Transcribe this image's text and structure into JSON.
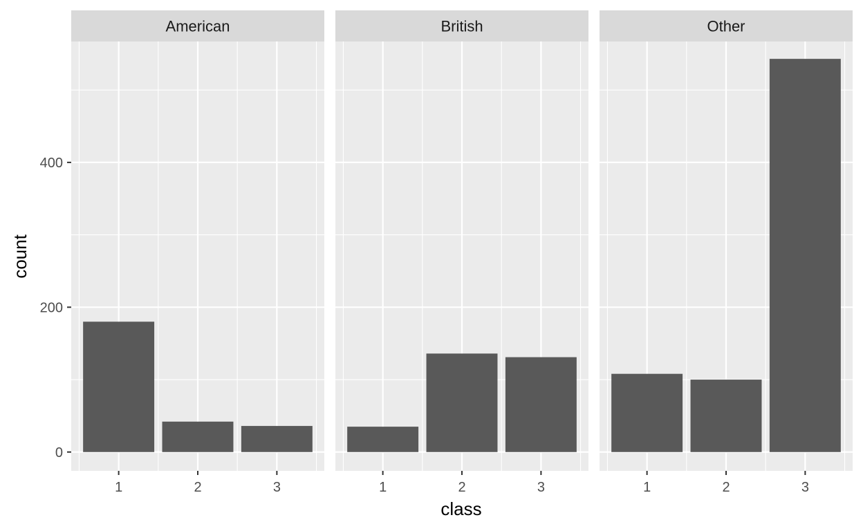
{
  "chart_data": {
    "type": "bar",
    "facet_var": "",
    "xlabel": "class",
    "ylabel": "count",
    "ylim": [
      -26,
      567
    ],
    "yticks": [
      0,
      200,
      400
    ],
    "categories": [
      "1",
      "2",
      "3"
    ],
    "facets": [
      {
        "name": "American",
        "values": [
          180,
          42,
          36
        ]
      },
      {
        "name": "British",
        "values": [
          35,
          136,
          131
        ]
      },
      {
        "name": "Other",
        "values": [
          108,
          100,
          543
        ]
      }
    ],
    "grid": true,
    "legend": "none"
  },
  "colors": {
    "panel_background": "#ebebeb",
    "strip_background": "#d9d9d9",
    "gridline": "#ffffff",
    "bar_fill": "#595959",
    "tick_mark": "#333333"
  }
}
